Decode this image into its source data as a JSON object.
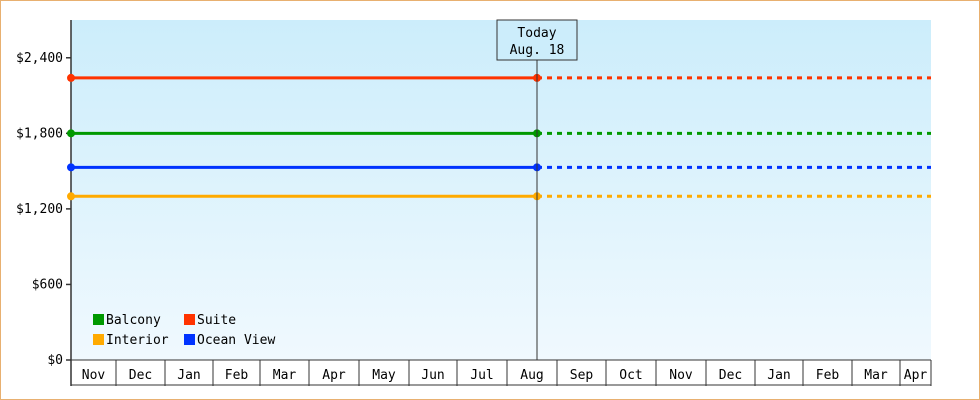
{
  "chart_data": {
    "type": "line",
    "ylim": [
      0,
      2700
    ],
    "y_ticks": [
      {
        "value": 0,
        "label": "$0"
      },
      {
        "value": 600,
        "label": "$600"
      },
      {
        "value": 1200,
        "label": "$1,200"
      },
      {
        "value": 1800,
        "label": "$1,800"
      },
      {
        "value": 2400,
        "label": "$2,400"
      }
    ],
    "x_ticks": [
      "Nov",
      "Dec",
      "Jan",
      "Feb",
      "Mar",
      "Apr",
      "May",
      "Jun",
      "Jul",
      "Aug",
      "Sep",
      "Oct",
      "Nov",
      "Dec",
      "Jan",
      "Feb",
      "Mar",
      "Apr"
    ],
    "today_marker": {
      "line1": "Today",
      "line2": "Aug. 18"
    },
    "series": [
      {
        "name": "Suite",
        "color": "#ff3300",
        "value": 2240
      },
      {
        "name": "Balcony",
        "color": "#009900",
        "value": 1800
      },
      {
        "name": "Ocean View",
        "color": "#0033ff",
        "value": 1530
      },
      {
        "name": "Interior",
        "color": "#ffaa00",
        "value": 1300
      }
    ],
    "legend": {
      "position": "bottom-left",
      "rows": [
        [
          "Balcony",
          "Suite"
        ],
        [
          "Interior",
          "Ocean View"
        ]
      ]
    },
    "grid": false,
    "background_gradient": [
      "#ccedfb",
      "#f0f9fe"
    ]
  }
}
